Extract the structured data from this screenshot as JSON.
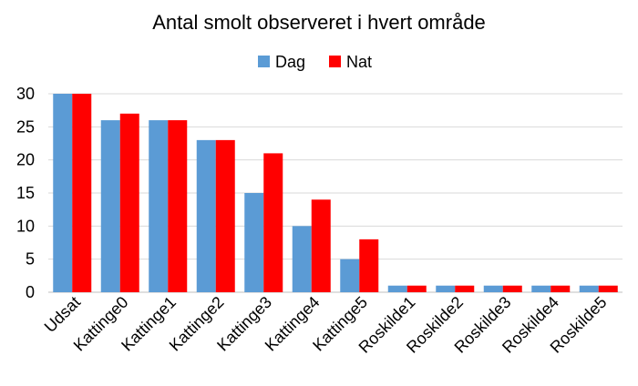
{
  "chart_data": {
    "type": "bar",
    "title": "Antal smolt observeret i hvert område",
    "categories": [
      "Udsat",
      "Kattinge0",
      "Kattinge1",
      "Kattinge2",
      "Kattinge3",
      "Kattinge4",
      "Kattinge5",
      "Roskilde1",
      "Roskilde2",
      "Roskilde3",
      "Roskilde4",
      "Roskilde5"
    ],
    "series": [
      {
        "name": "Dag",
        "color": "#5B9BD5",
        "values": [
          30,
          26,
          26,
          23,
          15,
          10,
          5,
          1,
          1,
          1,
          1,
          1
        ]
      },
      {
        "name": "Nat",
        "color": "#FF0000",
        "values": [
          30,
          27,
          26,
          23,
          21,
          14,
          8,
          1,
          1,
          1,
          1,
          1
        ]
      }
    ],
    "ylim": [
      0,
      30
    ],
    "yticks": [
      0,
      5,
      10,
      15,
      20,
      25,
      30
    ],
    "grid": true,
    "legend": "top-center"
  }
}
